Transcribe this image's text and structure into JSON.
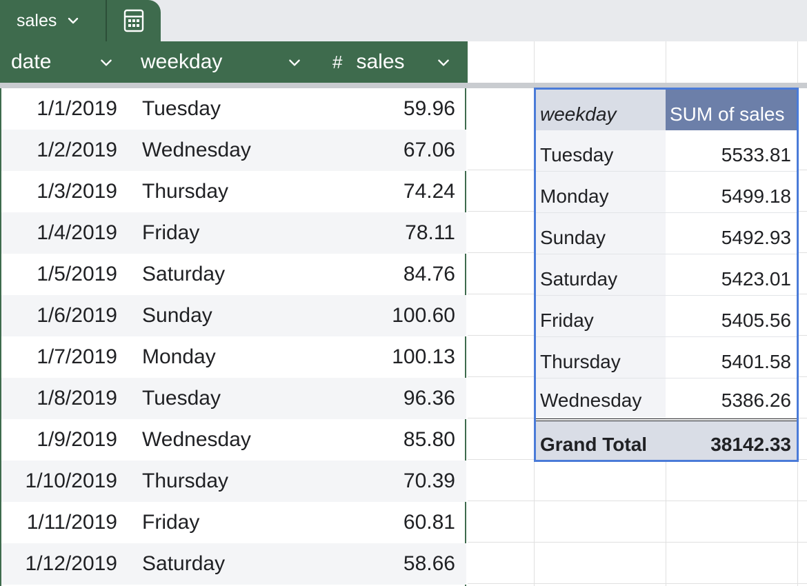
{
  "tab": {
    "name": "sales",
    "icon": "calculator-icon"
  },
  "columns": [
    {
      "label": "date",
      "type_glyph": ""
    },
    {
      "label": "weekday",
      "type_glyph": ""
    },
    {
      "label": "sales",
      "type_glyph": "#"
    }
  ],
  "rows": [
    {
      "date": "1/1/2019",
      "weekday": "Tuesday",
      "sales": "59.96"
    },
    {
      "date": "1/2/2019",
      "weekday": "Wednesday",
      "sales": "67.06"
    },
    {
      "date": "1/3/2019",
      "weekday": "Thursday",
      "sales": "74.24"
    },
    {
      "date": "1/4/2019",
      "weekday": "Friday",
      "sales": "78.11"
    },
    {
      "date": "1/5/2019",
      "weekday": "Saturday",
      "sales": "84.76"
    },
    {
      "date": "1/6/2019",
      "weekday": "Sunday",
      "sales": "100.60"
    },
    {
      "date": "1/7/2019",
      "weekday": "Monday",
      "sales": "100.13"
    },
    {
      "date": "1/8/2019",
      "weekday": "Tuesday",
      "sales": "96.36"
    },
    {
      "date": "1/9/2019",
      "weekday": "Wednesday",
      "sales": "85.80"
    },
    {
      "date": "1/10/2019",
      "weekday": "Thursday",
      "sales": "70.39"
    },
    {
      "date": "1/11/2019",
      "weekday": "Friday",
      "sales": "60.81"
    },
    {
      "date": "1/12/2019",
      "weekday": "Saturday",
      "sales": "58.66"
    }
  ],
  "pivot": {
    "row_header": "weekday",
    "value_header": "SUM of sales",
    "rows": [
      {
        "weekday": "Tuesday",
        "sum": "5533.81"
      },
      {
        "weekday": "Monday",
        "sum": "5499.18"
      },
      {
        "weekday": "Sunday",
        "sum": "5492.93"
      },
      {
        "weekday": "Saturday",
        "sum": "5423.01"
      },
      {
        "weekday": "Friday",
        "sum": "5405.56"
      },
      {
        "weekday": "Thursday",
        "sum": "5401.58"
      },
      {
        "weekday": "Wednesday",
        "sum": "5386.26"
      }
    ],
    "total_label": "Grand Total",
    "total_value": "38142.33"
  },
  "colors": {
    "table_header": "#3e6b4d",
    "pivot_accent": "#6c7fa9",
    "pivot_border": "#4a7bd8"
  }
}
